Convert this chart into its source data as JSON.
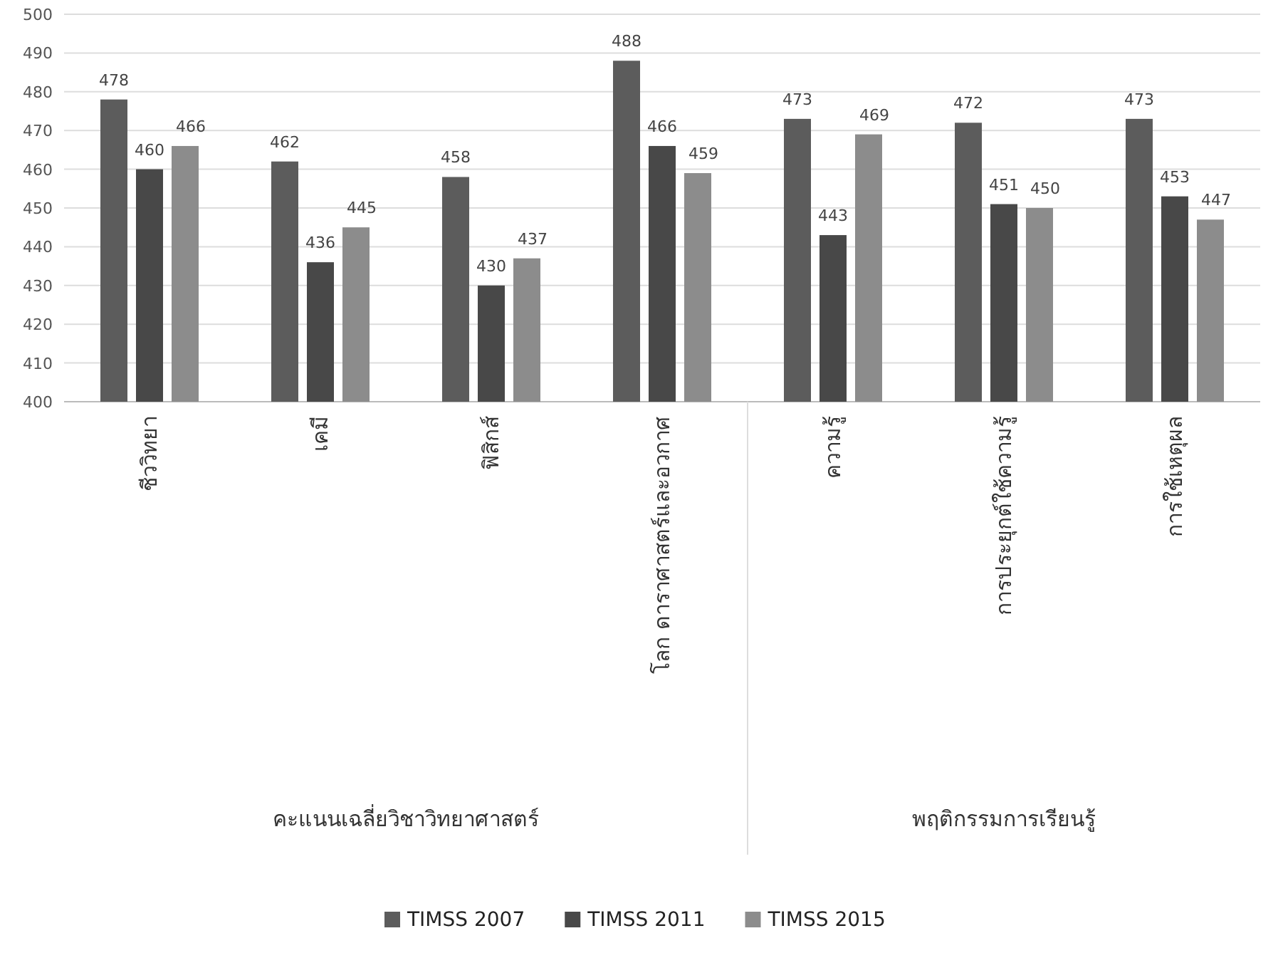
{
  "chart_data": {
    "type": "bar",
    "categories": [
      "ชีววิทยา",
      "เคมี",
      "ฟิสิกส์",
      "โลก ดาราศาสตร์และอวกาศ",
      "ความรู้",
      "การประยุกต์ใช้ความรู้",
      "การใช้เหตุผล"
    ],
    "series": [
      {
        "name": "TIMSS 2007",
        "color": "#5c5c5c",
        "values": [
          478,
          462,
          458,
          488,
          473,
          472,
          473
        ]
      },
      {
        "name": "TIMSS 2011",
        "color": "#484848",
        "values": [
          460,
          436,
          430,
          466,
          443,
          451,
          453
        ]
      },
      {
        "name": "TIMSS 2015",
        "color": "#8c8c8c",
        "values": [
          466,
          445,
          437,
          459,
          469,
          450,
          447
        ]
      }
    ],
    "ylim": [
      400,
      500
    ],
    "yticks": [
      400,
      410,
      420,
      430,
      440,
      450,
      460,
      470,
      480,
      490,
      500
    ],
    "grid": "y",
    "data_labels": true,
    "legend": "bottom",
    "annotations": [
      "คะแนนเฉลี่ยวิชาวิทยาศาสตร์",
      "พฤติกรรมการเรียนรู้"
    ]
  }
}
